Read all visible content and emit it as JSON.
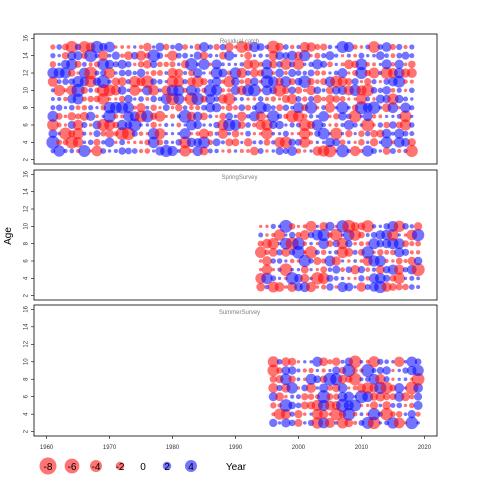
{
  "colors": {
    "positive": "#0000ff",
    "negative": "#ff0000",
    "frame": "#000000"
  },
  "chart_data": {
    "type": "scatter",
    "subtype": "bubble residual plot",
    "xlabel": "Year",
    "ylabel": "Age",
    "xlim": [
      1958,
      2022
    ],
    "ylim": [
      1.5,
      16.5
    ],
    "x_ticks": [
      "1960",
      "1970",
      "1980",
      "1990",
      "2000",
      "2010",
      "2020"
    ],
    "y_ticks": [
      "2",
      "4",
      "6",
      "8",
      "10",
      "12",
      "14",
      "16"
    ],
    "grid": false,
    "legend_position": "bottom-left",
    "legend": {
      "entries": [
        {
          "label": "-8",
          "value": -8
        },
        {
          "label": "-6",
          "value": -6
        },
        {
          "label": "-4",
          "value": -4
        },
        {
          "label": "-2",
          "value": -2
        },
        {
          "label": "0",
          "value": 0
        },
        {
          "label": "2",
          "value": 2
        },
        {
          "label": "4",
          "value": 4
        }
      ],
      "axis_word": "Year"
    },
    "panels": [
      {
        "title": "Residual catch",
        "years": [
          1961,
          2018
        ],
        "ages": [
          3,
          15
        ]
      },
      {
        "title": "SpringSurvey",
        "years": [
          1994,
          2019
        ],
        "ages": [
          3,
          10
        ]
      },
      {
        "title": "SummerSurvey",
        "years": [
          1996,
          2019
        ],
        "ages": [
          3,
          10
        ]
      }
    ]
  }
}
